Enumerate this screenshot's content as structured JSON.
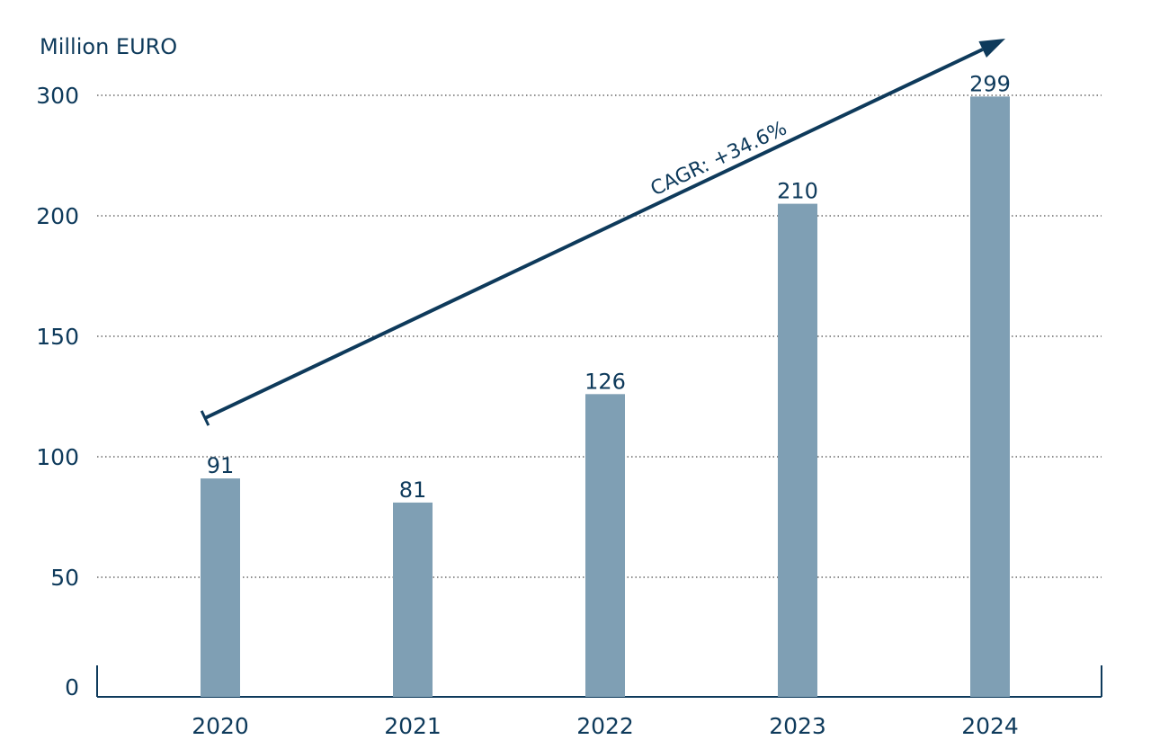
{
  "colors": {
    "bar": "#7f9fb4",
    "text": "#0e3a5b",
    "arrow": "#0e3a5b",
    "grid": "#4a4a4a"
  },
  "chart_data": {
    "type": "bar",
    "categories": [
      "2020",
      "2021",
      "2022",
      "2023",
      "2024"
    ],
    "values": [
      91,
      81,
      126,
      210,
      299
    ],
    "data_labels": [
      "91",
      "81",
      "126",
      "210",
      "299"
    ],
    "title": "",
    "xlabel": "",
    "ylabel": "Million EURO",
    "ylim": [
      0,
      300
    ],
    "yticks": [
      0,
      50,
      100,
      150,
      200,
      300
    ],
    "grid": "dotted horizontal",
    "annotation": "CAGR: +34.6%"
  }
}
